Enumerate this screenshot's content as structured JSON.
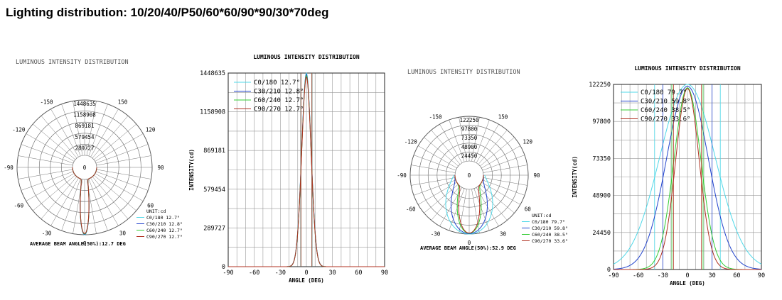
{
  "page_title": "Lighting distribution: 10/20/40/P50/60*60/90*90/30*70deg",
  "chart_data": [
    {
      "type": "polar",
      "title": "LUMINOUS INTENSITY DISTRIBUTION",
      "ring_labels": [
        "1448635",
        "1158908",
        "869181",
        "579454",
        "289727"
      ],
      "angle_labels": [
        {
          "label": "-150",
          "deg": -150
        },
        {
          "label": "150",
          "deg": 150
        },
        {
          "label": "-120",
          "deg": -120
        },
        {
          "label": "120",
          "deg": 120
        },
        {
          "label": "-90",
          "deg": -90
        },
        {
          "label": "90",
          "deg": 90
        },
        {
          "label": "-60",
          "deg": -60
        },
        {
          "label": "60",
          "deg": 60
        },
        {
          "label": "-30",
          "deg": -30
        },
        {
          "label": "30",
          "deg": 30
        },
        {
          "label": "0",
          "deg": 0
        }
      ],
      "center_label": "0",
      "rmax": 1448635,
      "unit": "UNIT:cd",
      "legend": [
        "C0/180 12.7°",
        "C30/210 12.8°",
        "C60/240 12.7°",
        "C90/270 12.7°"
      ],
      "beam_half_angles": [
        6.35,
        6.4,
        6.35,
        6.35
      ],
      "peaks": [
        1448635,
        1440000,
        1430000,
        1420000
      ],
      "colors": [
        "#4fd8e8",
        "#2244cc",
        "#33cc33",
        "#b03020"
      ],
      "footer": "AVERAGE BEAM ANGLE(50%):12.7 DEG"
    },
    {
      "type": "line",
      "title": "LUMINOUS INTENSITY DISTRIBUTION",
      "xlabel": "ANGLE (DEG)",
      "ylabel": "INTENSITY(cd)",
      "xlim": [
        -90,
        90
      ],
      "ylim": [
        0,
        1448635
      ],
      "yticks": [
        0,
        289727,
        579454,
        869181,
        1158908,
        1448635
      ],
      "xticks": [
        -90,
        -60,
        -30,
        0,
        30,
        60,
        90
      ],
      "series": [
        {
          "name": "C0/180 12.7°",
          "color": "#4fd8e8",
          "peak": 1448635,
          "half": 6.35,
          "markers": [
            -6.35,
            6.35
          ]
        },
        {
          "name": "C30/210 12.8°",
          "color": "#2244cc",
          "peak": 1440000,
          "half": 6.4,
          "markers": [
            -6.4,
            6.4
          ]
        },
        {
          "name": "C60/240 12.7°",
          "color": "#33cc33",
          "peak": 1430000,
          "half": 6.35,
          "markers": [
            -6.35,
            6.35
          ]
        },
        {
          "name": "C90/270 12.7°",
          "color": "#b03020",
          "peak": 1420000,
          "half": 6.35,
          "markers": [
            -6.35,
            6.35
          ]
        }
      ]
    },
    {
      "type": "polar",
      "title": "LUMINOUS INTENSITY DISTRIBUTION",
      "ring_labels": [
        "122250",
        "97800",
        "73350",
        "48900",
        "24450"
      ],
      "angle_labels": [
        {
          "label": "-150",
          "deg": -150
        },
        {
          "label": "150",
          "deg": 150
        },
        {
          "label": "-120",
          "deg": -120
        },
        {
          "label": "120",
          "deg": 120
        },
        {
          "label": "-90",
          "deg": -90
        },
        {
          "label": "90",
          "deg": 90
        },
        {
          "label": "-60",
          "deg": -60
        },
        {
          "label": "60",
          "deg": 60
        },
        {
          "label": "-30",
          "deg": -30
        },
        {
          "label": "30",
          "deg": 30
        },
        {
          "label": "0",
          "deg": 0
        }
      ],
      "center_label": "0",
      "rmax": 122250,
      "unit": "UNIT:cd",
      "legend": [
        "C0/180 79.7°",
        "C30/210 59.8°",
        "C60/240 38.5°",
        "C90/270 33.6°"
      ],
      "beam_half_angles": [
        39.85,
        29.9,
        19.25,
        16.8
      ],
      "peaks": [
        122250,
        121000,
        120000,
        119500
      ],
      "colors": [
        "#4fd8e8",
        "#2244cc",
        "#33cc33",
        "#b03020"
      ],
      "footer": "AVERAGE BEAM ANGLE(50%):52.9 DEG"
    },
    {
      "type": "line",
      "title": "LUMINOUS INTENSITY DISTRIBUTION",
      "xlabel": "ANGLE (DEG)",
      "ylabel": "INTENSITY(cd)",
      "xlim": [
        -90,
        90
      ],
      "ylim": [
        0,
        122250
      ],
      "yticks": [
        0,
        24450,
        48900,
        73350,
        97800,
        122250
      ],
      "xticks": [
        -90,
        -60,
        -30,
        0,
        30,
        60,
        90
      ],
      "series": [
        {
          "name": "C0/180 79.7°",
          "color": "#4fd8e8",
          "peak": 122250,
          "half": 39.85,
          "markers": [
            -40,
            40
          ]
        },
        {
          "name": "C30/210 59.8°",
          "color": "#2244cc",
          "peak": 121000,
          "half": 29.9,
          "markers": [
            -30,
            30
          ]
        },
        {
          "name": "C60/240 38.5°",
          "color": "#33cc33",
          "peak": 120000,
          "half": 19.25,
          "markers": [
            -19,
            19
          ]
        },
        {
          "name": "C90/270 33.6°",
          "color": "#b03020",
          "peak": 119500,
          "half": 16.8,
          "markers": [
            -17,
            17
          ]
        }
      ]
    }
  ]
}
